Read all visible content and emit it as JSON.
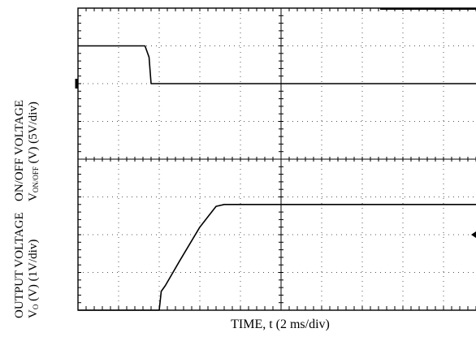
{
  "chart_data": {
    "type": "line",
    "title": "",
    "xlabel": "TIME, t (2 ms/div)",
    "x_divisions": 10,
    "y_divisions": 8,
    "grid": true,
    "panels": [
      {
        "name": "on-off-voltage",
        "ylabel_line1": "ON/OFF VOLTAGE",
        "ylabel_line2_main": "V",
        "ylabel_line2_sub": "ON/OFF",
        "ylabel_line2_rest": " (V) (5V/div)",
        "baseline_div": 6,
        "series": [
          {
            "name": "V_ON/OFF",
            "x": [
              0,
              1.65,
              1.75,
              1.8,
              2.0,
              10
            ],
            "y": [
              1.0,
              1.0,
              0.7,
              0,
              0,
              0
            ]
          }
        ]
      },
      {
        "name": "output-voltage",
        "ylabel_line1": "OUTPUT VOLTAGE",
        "ylabel_line2_main": "V",
        "ylabel_line2_sub": "O",
        "ylabel_line2_rest": " (V) (1V/div)",
        "baseline_div": 0,
        "series": [
          {
            "name": "V_O",
            "x": [
              0,
              2.0,
              2.05,
              2.15,
              2.5,
              3.0,
              3.4,
              3.6,
              10
            ],
            "y": [
              0,
              0,
              0.5,
              0.65,
              1.3,
              2.2,
              2.75,
              2.8,
              2.8
            ]
          }
        ]
      }
    ]
  }
}
